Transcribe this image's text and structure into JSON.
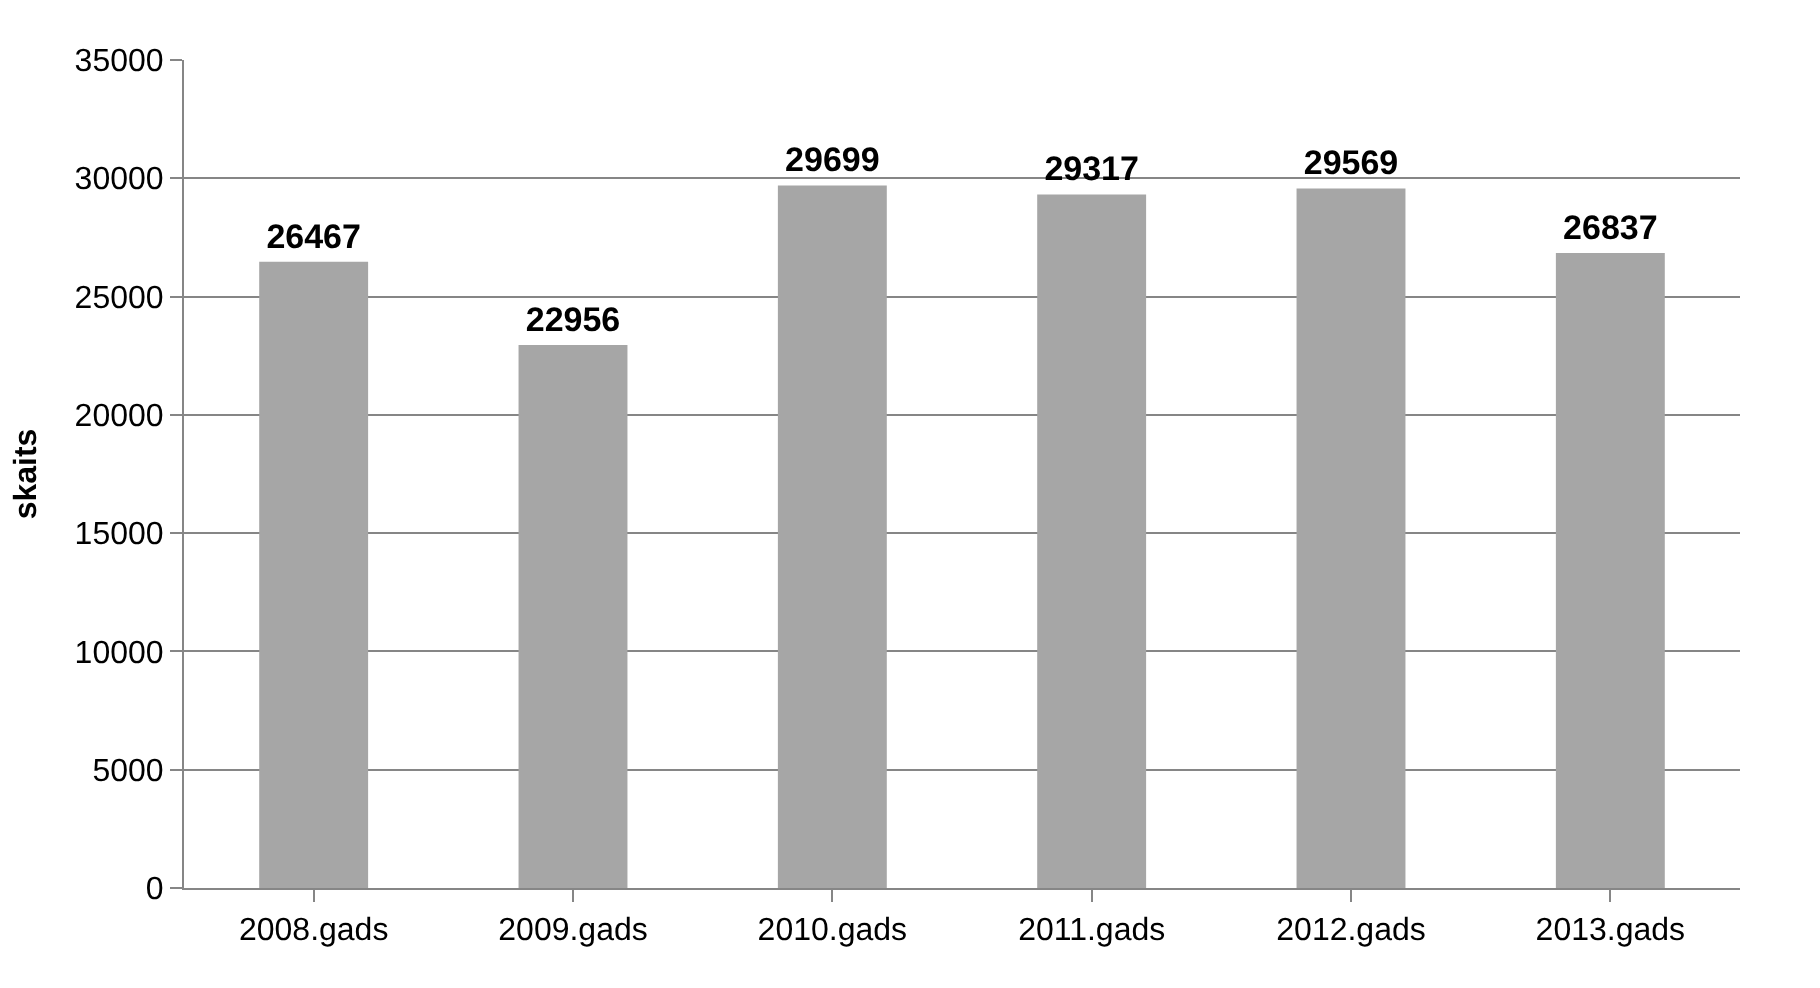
{
  "chart_data": {
    "type": "bar",
    "ylabel": "skaits",
    "categories": [
      "2008.gads",
      "2009.gads",
      "2010.gads",
      "2011.gads",
      "2012.gads",
      "2013.gads"
    ],
    "values": [
      26467,
      22956,
      29699,
      29317,
      29569,
      26837
    ],
    "color": "#a6a6a6",
    "ylim": [
      0,
      35000
    ],
    "yticks": [
      0,
      5000,
      10000,
      15000,
      20000,
      25000,
      30000,
      35000
    ],
    "grid": "y",
    "data_labels": true
  }
}
